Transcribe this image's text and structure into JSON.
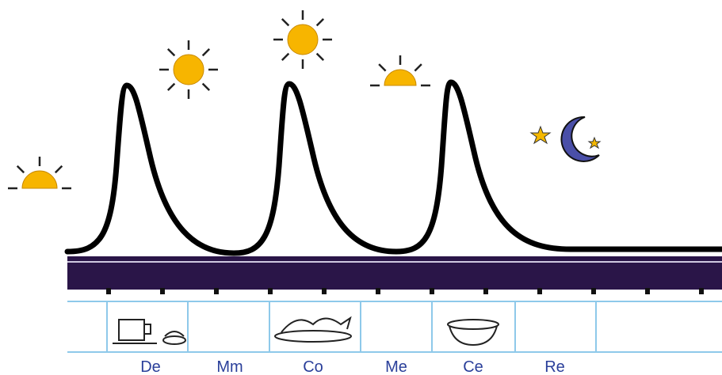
{
  "timeline": {
    "labels": [
      "De",
      "Mm",
      "Co",
      "Me",
      "Ce",
      "Re"
    ]
  }
}
